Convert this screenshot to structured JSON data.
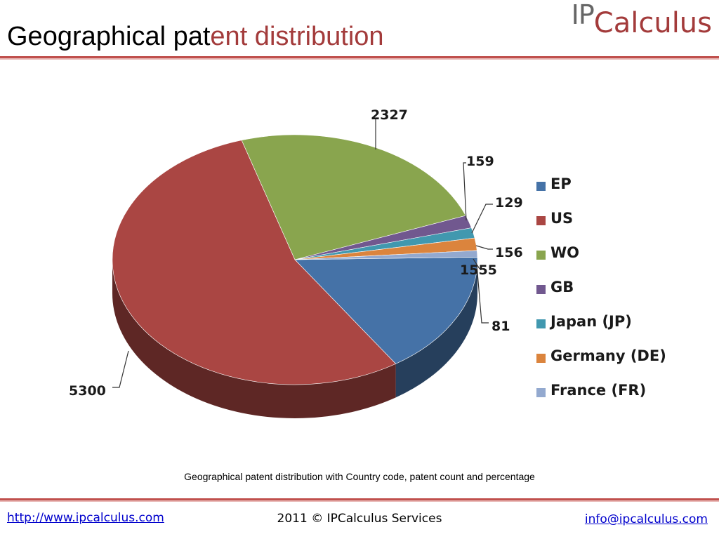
{
  "title": {
    "part1": "Geographical pat",
    "part2": "ent distribution"
  },
  "logo": {
    "ip": "IP",
    "rest": "Calculus"
  },
  "caption": "Geographical patent distribution with Country code, patent count and percentage",
  "footer": {
    "left_link": "http://www.ipcalculus.com",
    "center": "2011 © IPCalculus Services",
    "right_link": "info@ipcalculus.com"
  },
  "chart_data": {
    "type": "pie",
    "title": "",
    "legend_position": "right",
    "slices": [
      {
        "label": "EP",
        "value": 1555,
        "data_label": "1555",
        "color": "#4572a7"
      },
      {
        "label": "US",
        "value": 5300,
        "data_label": "5300",
        "color": "#aa4643"
      },
      {
        "label": "WO",
        "value": 2327,
        "data_label": "2327",
        "color": "#89a54e"
      },
      {
        "label": "GB",
        "value": 159,
        "data_label": "159",
        "color": "#71588f"
      },
      {
        "label": "Japan (JP)",
        "value": 129,
        "data_label": "129",
        "color": "#4198af"
      },
      {
        "label": "Germany (DE)",
        "value": 156,
        "data_label": "156",
        "color": "#db843d"
      },
      {
        "label": "France (FR)",
        "value": 81,
        "data_label": "81",
        "color": "#93a9cf"
      }
    ]
  }
}
